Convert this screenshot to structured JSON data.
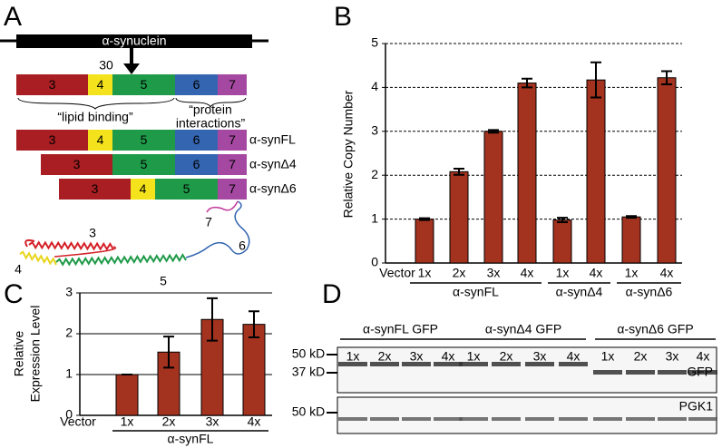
{
  "panel_a": {
    "label": "A",
    "gene": "α-synuclein",
    "residue": "30",
    "domains": [
      "3",
      "4",
      "5",
      "6",
      "7"
    ],
    "regions": [
      "“lipid binding”",
      "“protein",
      "interactions”"
    ],
    "constructs": [
      {
        "name": "α-synFL",
        "segments": [
          "3",
          "4",
          "5",
          "6",
          "7"
        ]
      },
      {
        "name": "α-synΔ4",
        "segments": [
          "3",
          "5",
          "6",
          "7"
        ]
      },
      {
        "name": "α-synΔ6",
        "segments": [
          "3",
          "4",
          "5",
          "7"
        ]
      }
    ],
    "structure_labels": [
      "3",
      "4",
      "5",
      "6",
      "7"
    ]
  },
  "chart_data": [
    {
      "type": "bar",
      "panel": "B",
      "ylabel": "Relative  Copy Number",
      "categories": [
        "Vector",
        "1x",
        "2x",
        "3x",
        "4x",
        "1x",
        "4x",
        "1x",
        "4x"
      ],
      "groups": [
        null,
        "α-synFL",
        "α-synFL",
        "α-synFL",
        "α-synFL",
        "α-synΔ4",
        "α-synΔ4",
        "α-synΔ6",
        "α-synΔ6"
      ],
      "values": [
        null,
        1.0,
        2.08,
        3.0,
        4.1,
        0.98,
        4.17,
        1.05,
        4.22
      ],
      "errors": [
        null,
        0.02,
        0.07,
        0.03,
        0.1,
        0.05,
        0.4,
        0.02,
        0.15
      ],
      "color": "#a3321f",
      "ylim": [
        0,
        5
      ],
      "yticks": [
        0,
        1,
        2,
        3,
        4,
        5
      ],
      "grid": "dashed"
    },
    {
      "type": "bar",
      "panel": "C",
      "ylabel": [
        "Relative",
        "Expression Level"
      ],
      "categories": [
        "Vector",
        "1x",
        "2x",
        "3x",
        "4x"
      ],
      "groups": [
        null,
        "α-synFL",
        "α-synFL",
        "α-synFL",
        "α-synFL"
      ],
      "values": [
        null,
        1.0,
        1.55,
        2.35,
        2.23
      ],
      "errors": [
        null,
        0,
        0.38,
        0.52,
        0.32
      ],
      "color": "#a3321f",
      "ylim": [
        0,
        3
      ],
      "yticks": [
        0,
        1,
        2,
        3
      ],
      "grid": "solid"
    }
  ],
  "panel_d": {
    "label": "D",
    "groups": [
      "α-synFL GFP",
      "α-synΔ4 GFP",
      "α-synΔ6 GFP"
    ],
    "lanes": [
      "1x",
      "2x",
      "3x",
      "4x",
      "1x",
      "2x",
      "3x",
      "4x",
      "1x",
      "2x",
      "3x",
      "4x"
    ],
    "markers_top": [
      "50 kD",
      "37 kD"
    ],
    "top_label": "GFP",
    "markers_bottom": [
      "50 kD"
    ],
    "bottom_label": "PGK1"
  }
}
